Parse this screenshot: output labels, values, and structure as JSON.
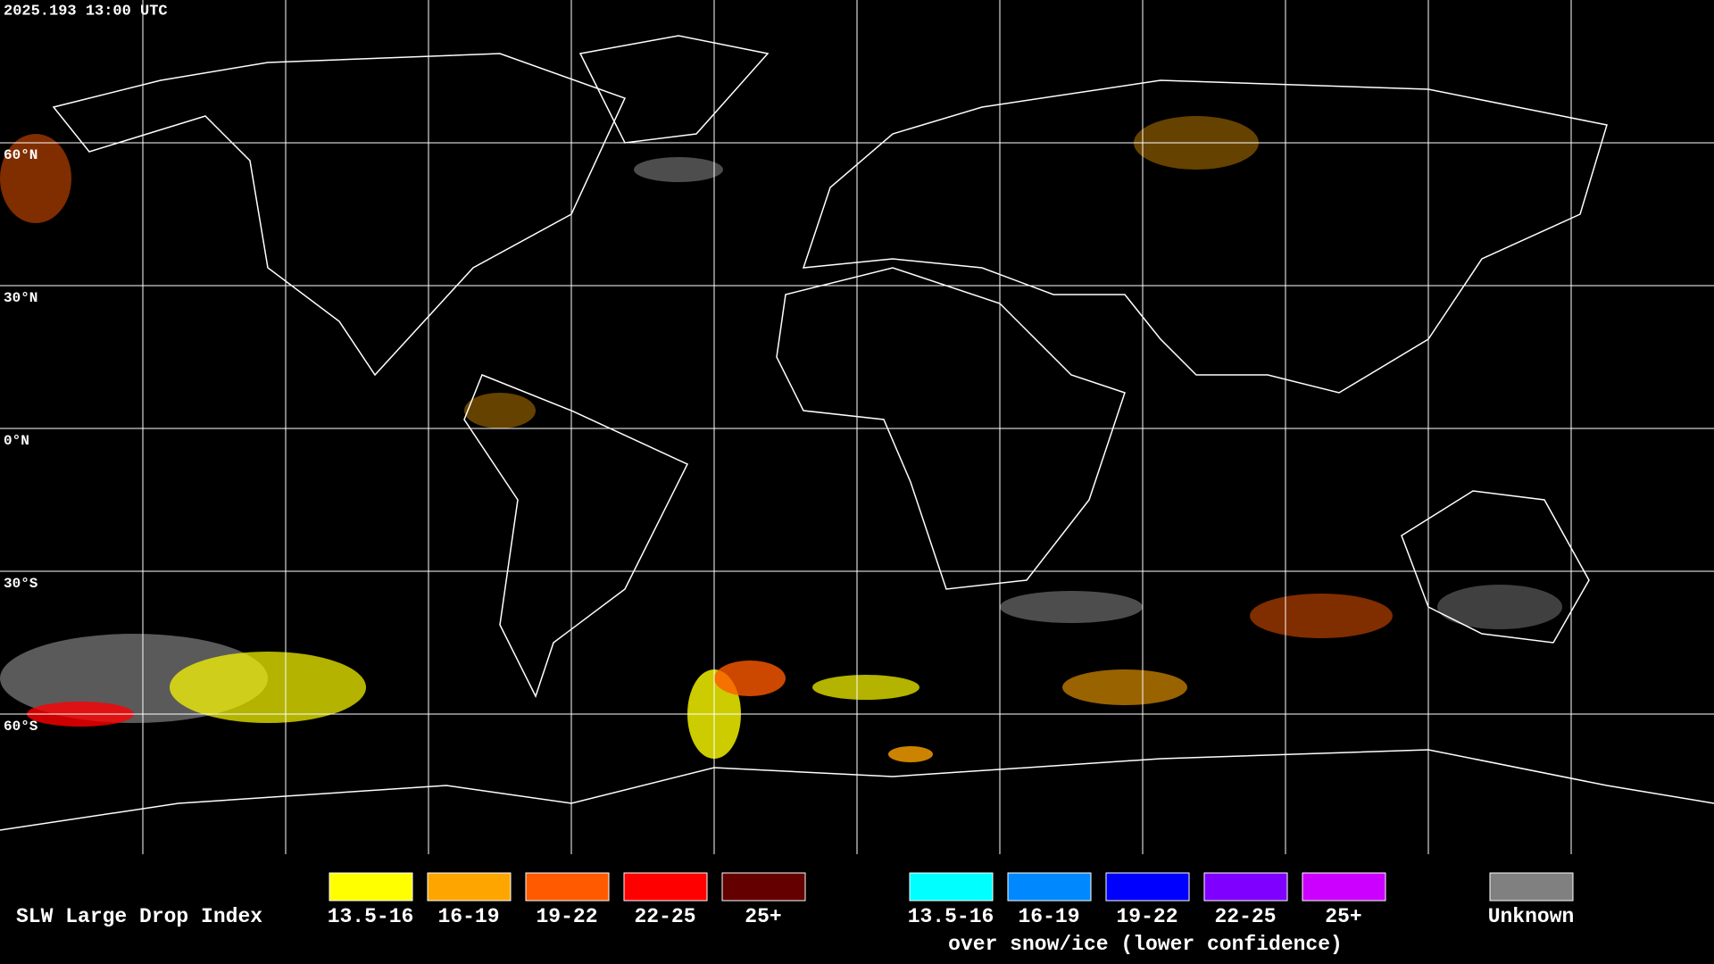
{
  "header": {
    "timestamp": "2025.193 13:00 UTC"
  },
  "map": {
    "latitude_labels": [
      "60°N",
      "30°N",
      "0°N",
      "30°S",
      "60°S"
    ]
  },
  "legend": {
    "title": "SLW Large Drop Index",
    "items": [
      {
        "label": "13.5-16",
        "color": "#ffff00"
      },
      {
        "label": "16-19",
        "color": "#ffa500"
      },
      {
        "label": "19-22",
        "color": "#ff5a00"
      },
      {
        "label": "22-25",
        "color": "#ff0000"
      },
      {
        "label": "25+",
        "color": "#640000"
      }
    ],
    "snow_ice_items": [
      {
        "label": "13.5-16",
        "color": "#00ffff"
      },
      {
        "label": "16-19",
        "color": "#0088ff"
      },
      {
        "label": "19-22",
        "color": "#0000ff"
      },
      {
        "label": "22-25",
        "color": "#7f00ff"
      },
      {
        "label": "25+",
        "color": "#cc00ff"
      }
    ],
    "snow_ice_note": "over snow/ice (lower confidence)",
    "unknown": {
      "label": "Unknown",
      "color": "#808080"
    }
  }
}
